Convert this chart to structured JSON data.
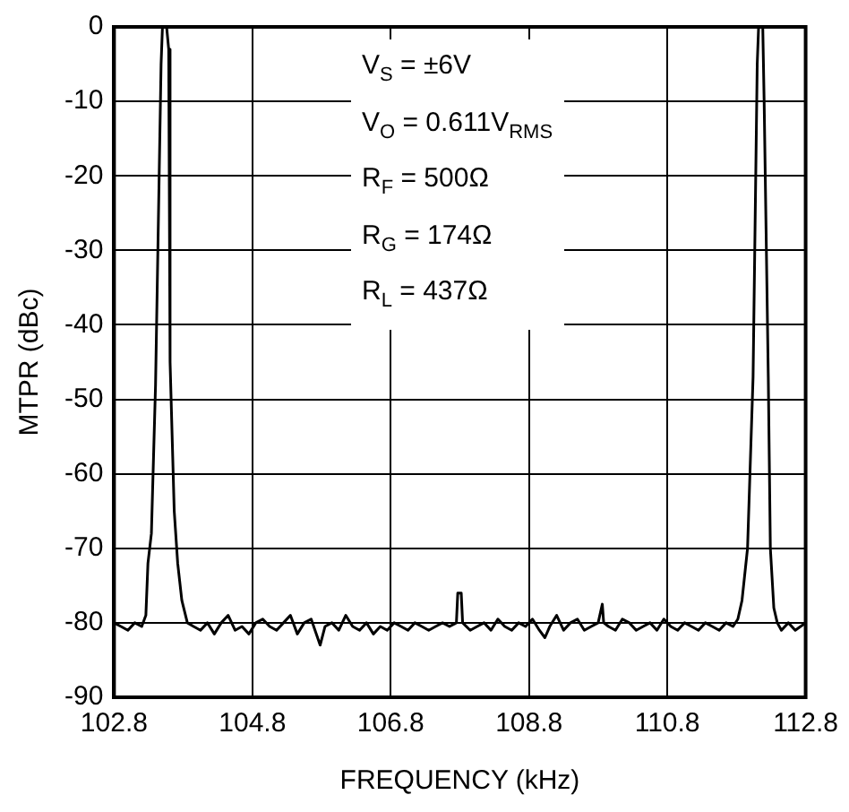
{
  "chart_data": {
    "type": "line",
    "xlabel": "FREQUENCY (kHz)",
    "ylabel": "MTPR (dBc)",
    "annotations": [
      "V$_{S}$ = ±6V",
      "V$_{O}$ = 0.611V$_{RMS}$",
      "R$_{F}$ = 500Ω",
      "R$_{G}$ = 174Ω",
      "R$_{L}$ = 437Ω"
    ],
    "xlim": [
      102.8,
      112.8
    ],
    "xticks": [
      102.8,
      104.8,
      106.8,
      108.8,
      110.8,
      112.8
    ],
    "ylim": [
      -90,
      0
    ],
    "yticks": [
      -90,
      -80,
      -70,
      -60,
      -50,
      -40,
      -30,
      -20,
      -10,
      0
    ],
    "grid": true,
    "legend": false,
    "marker": "none",
    "line_style": "solid",
    "series": [
      {
        "color": "#000000",
        "x": [
          102.8,
          102.9,
          103.0,
          103.1,
          103.2,
          103.26,
          103.29,
          103.34,
          103.4,
          103.48,
          103.5,
          103.56,
          103.59,
          103.61,
          103.67,
          103.72,
          103.78,
          103.86,
          103.95,
          104.05,
          104.15,
          104.25,
          104.35,
          104.45,
          104.55,
          104.65,
          104.75,
          104.85,
          104.95,
          105.05,
          105.15,
          105.25,
          105.35,
          105.45,
          105.55,
          105.65,
          105.78,
          105.85,
          105.95,
          106.05,
          106.15,
          106.25,
          106.35,
          106.45,
          106.55,
          106.65,
          106.75,
          106.85,
          106.95,
          107.05,
          107.15,
          107.25,
          107.35,
          107.45,
          107.55,
          107.65,
          107.75,
          107.77,
          107.82,
          107.84,
          107.95,
          108.05,
          108.15,
          108.25,
          108.35,
          108.45,
          108.55,
          108.65,
          108.75,
          108.85,
          108.95,
          109.03,
          109.1,
          109.2,
          109.3,
          109.4,
          109.5,
          109.6,
          109.7,
          109.8,
          109.86,
          109.88,
          109.95,
          110.05,
          110.15,
          110.25,
          110.35,
          110.45,
          110.55,
          110.65,
          110.75,
          110.85,
          110.95,
          111.05,
          111.15,
          111.25,
          111.35,
          111.45,
          111.55,
          111.65,
          111.75,
          111.82,
          111.88,
          111.96,
          112.04,
          112.1,
          112.12,
          112.18,
          112.2,
          112.26,
          112.29,
          112.34,
          112.39,
          112.45,
          112.55,
          112.65,
          112.8
        ],
        "values": [
          -80,
          -80.5,
          -81,
          -80,
          -80.5,
          -79,
          -72,
          -68,
          -48,
          -5,
          0,
          0,
          -3,
          -45,
          -65,
          -72,
          -77,
          -80,
          -80.5,
          -81,
          -80,
          -81.5,
          -80,
          -79,
          -81,
          -80.5,
          -81.5,
          -80,
          -79.5,
          -80.5,
          -81,
          -80,
          -79,
          -81.5,
          -80,
          -79.5,
          -83,
          -80.5,
          -80,
          -81,
          -79,
          -80.5,
          -81,
          -80,
          -81.5,
          -80.5,
          -81,
          -80,
          -80.5,
          -81,
          -80,
          -80.5,
          -81,
          -80.5,
          -80,
          -80.5,
          -80,
          -76,
          -76,
          -80,
          -81,
          -80.5,
          -80,
          -81,
          -79.5,
          -80.5,
          -81,
          -80,
          -80.5,
          -79.5,
          -81,
          -82,
          -80.5,
          -79,
          -81,
          -80,
          -79.5,
          -81,
          -80.5,
          -80,
          -77.5,
          -80,
          -80.5,
          -81,
          -79.5,
          -80,
          -81,
          -80.5,
          -80,
          -81,
          -79.5,
          -80.5,
          -81,
          -80,
          -80.5,
          -81,
          -80,
          -80.5,
          -81,
          -80,
          -80.5,
          -79.5,
          -77,
          -70,
          -47,
          -5,
          0,
          0,
          -10,
          -47,
          -70,
          -78,
          -80,
          -81,
          -80,
          -81,
          -80
        ]
      }
    ]
  }
}
